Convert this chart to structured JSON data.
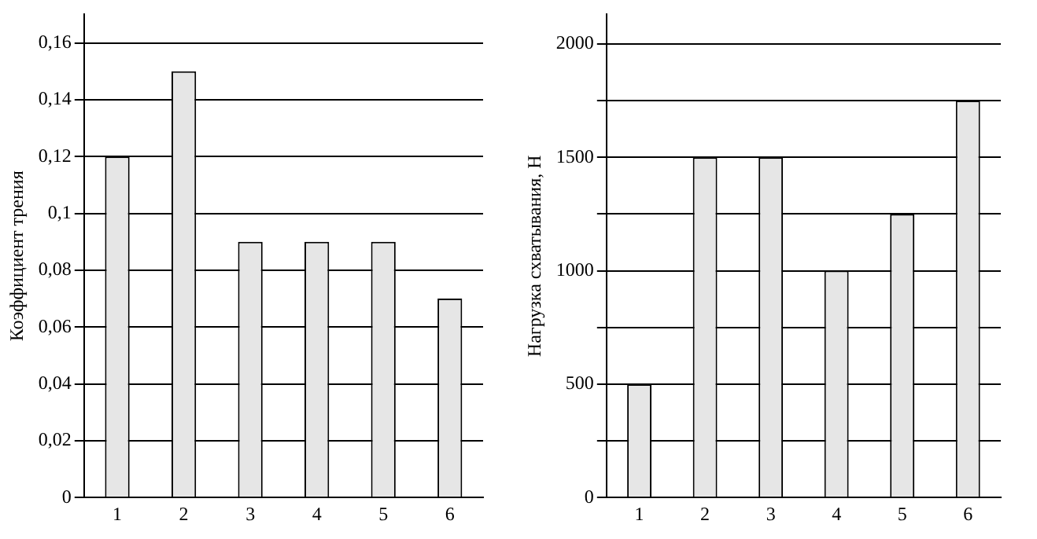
{
  "chart_data": [
    {
      "type": "bar",
      "ylabel": "Коэффициент трения",
      "categories": [
        "1",
        "2",
        "3",
        "4",
        "5",
        "6"
      ],
      "values": [
        0.12,
        0.15,
        0.09,
        0.09,
        0.09,
        0.07
      ],
      "color": "#e6e6e6",
      "ylim": [
        0,
        0.17
      ],
      "yticks": [
        0,
        {
          "value": 0.02,
          "label": "0,02"
        },
        {
          "value": 0.04,
          "label": "0,04"
        },
        {
          "value": 0.06,
          "label": "0,06"
        },
        {
          "value": 0.08,
          "label": "0,08"
        },
        {
          "value": 0.1,
          "label": "0,1"
        },
        {
          "value": 0.12,
          "label": "0,12"
        },
        {
          "value": 0.14,
          "label": "0,14"
        },
        {
          "value": 0.16,
          "label": "0,16"
        }
      ],
      "grid": "y"
    },
    {
      "type": "bar",
      "ylabel": "Нагрузка схватывания, Н",
      "categories": [
        "1",
        "2",
        "3",
        "4",
        "5",
        "6"
      ],
      "values": [
        500,
        1500,
        1500,
        1000,
        1250,
        1750
      ],
      "color": "#e6e6e6",
      "ylim": [
        0,
        2130
      ],
      "yticks": [
        0,
        {
          "value": 250,
          "label": null
        },
        500,
        {
          "value": 750,
          "label": null
        },
        1000,
        {
          "value": 1250,
          "label": null
        },
        1500,
        {
          "value": 1750,
          "label": null
        },
        2000
      ],
      "grid": "y"
    }
  ]
}
